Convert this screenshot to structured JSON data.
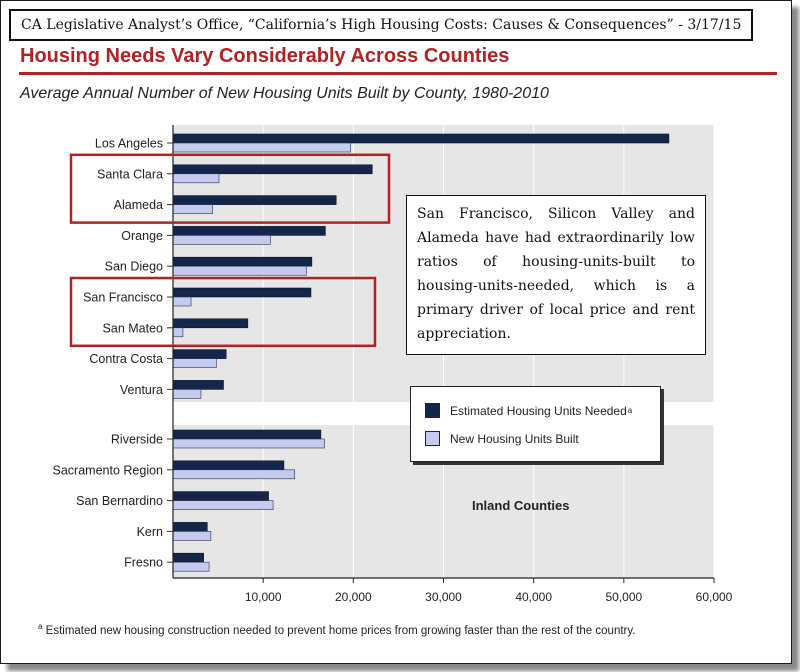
{
  "header": {
    "source": "CA Legislative Analyst’s Office, “California’s High Housing Costs: Causes & Consequences” - 3/17/15",
    "title": "Housing Needs Vary Considerably Across Counties"
  },
  "colors": {
    "needed": "#14274a",
    "built": "#c5cbee",
    "title_red": "#b22222",
    "highlight_box": "#b22222",
    "plot_band": "#e6e6e6"
  },
  "callout": {
    "text": "San Francisco, Silicon Valley and Alameda have had extraordinarily low ratios of housing-units-built to housing-units-needed, which is a primary driver of local price and rent appreciation."
  },
  "legend": {
    "needed_label": "Estimated Housing Units Needed",
    "needed_marker": "a",
    "built_label": "New Housing Units Built"
  },
  "inland_label": "Inland Counties",
  "footnote": {
    "marker": "a",
    "text": " Estimated new housing construction needed to prevent home prices from growing faster than the rest of the country."
  },
  "chart_data": {
    "type": "bar",
    "orientation": "horizontal",
    "title": "Average Annual Number of New Housing Units Built by County, 1980-2010",
    "categories": [
      "Los Angeles",
      "Santa Clara",
      "Alameda",
      "Orange",
      "San Diego",
      "San Francisco",
      "San Mateo",
      "Contra Costa",
      "Ventura",
      "Riverside",
      "Sacramento Region",
      "San Bernardino",
      "Kern",
      "Fresno"
    ],
    "groups": [
      {
        "name": "",
        "categories": [
          "Los Angeles",
          "Santa Clara",
          "Alameda",
          "Orange",
          "San Diego",
          "San Francisco",
          "San Mateo",
          "Contra Costa",
          "Ventura"
        ]
      },
      {
        "name": "Inland Counties",
        "categories": [
          "Riverside",
          "Sacramento Region",
          "San Bernardino",
          "Kern",
          "Fresno"
        ]
      }
    ],
    "series": [
      {
        "name": "Estimated Housing Units Needed",
        "values": [
          55000,
          22100,
          18100,
          16900,
          15400,
          15300,
          8300,
          5900,
          5600,
          16400,
          12300,
          10600,
          3800,
          3400
        ]
      },
      {
        "name": "New Housing Units Built",
        "values": [
          19700,
          5100,
          4400,
          10800,
          14800,
          2000,
          1100,
          4800,
          3100,
          16800,
          13500,
          11100,
          4200,
          4000
        ]
      }
    ],
    "x_ticks": [
      "10,000",
      "20,000",
      "30,000",
      "40,000",
      "50,000",
      "60,000"
    ],
    "xlim": [
      0,
      60000
    ],
    "highlighted_groups": [
      [
        "Santa Clara",
        "Alameda"
      ],
      [
        "San Francisco",
        "San Mateo"
      ]
    ],
    "grid": true
  }
}
